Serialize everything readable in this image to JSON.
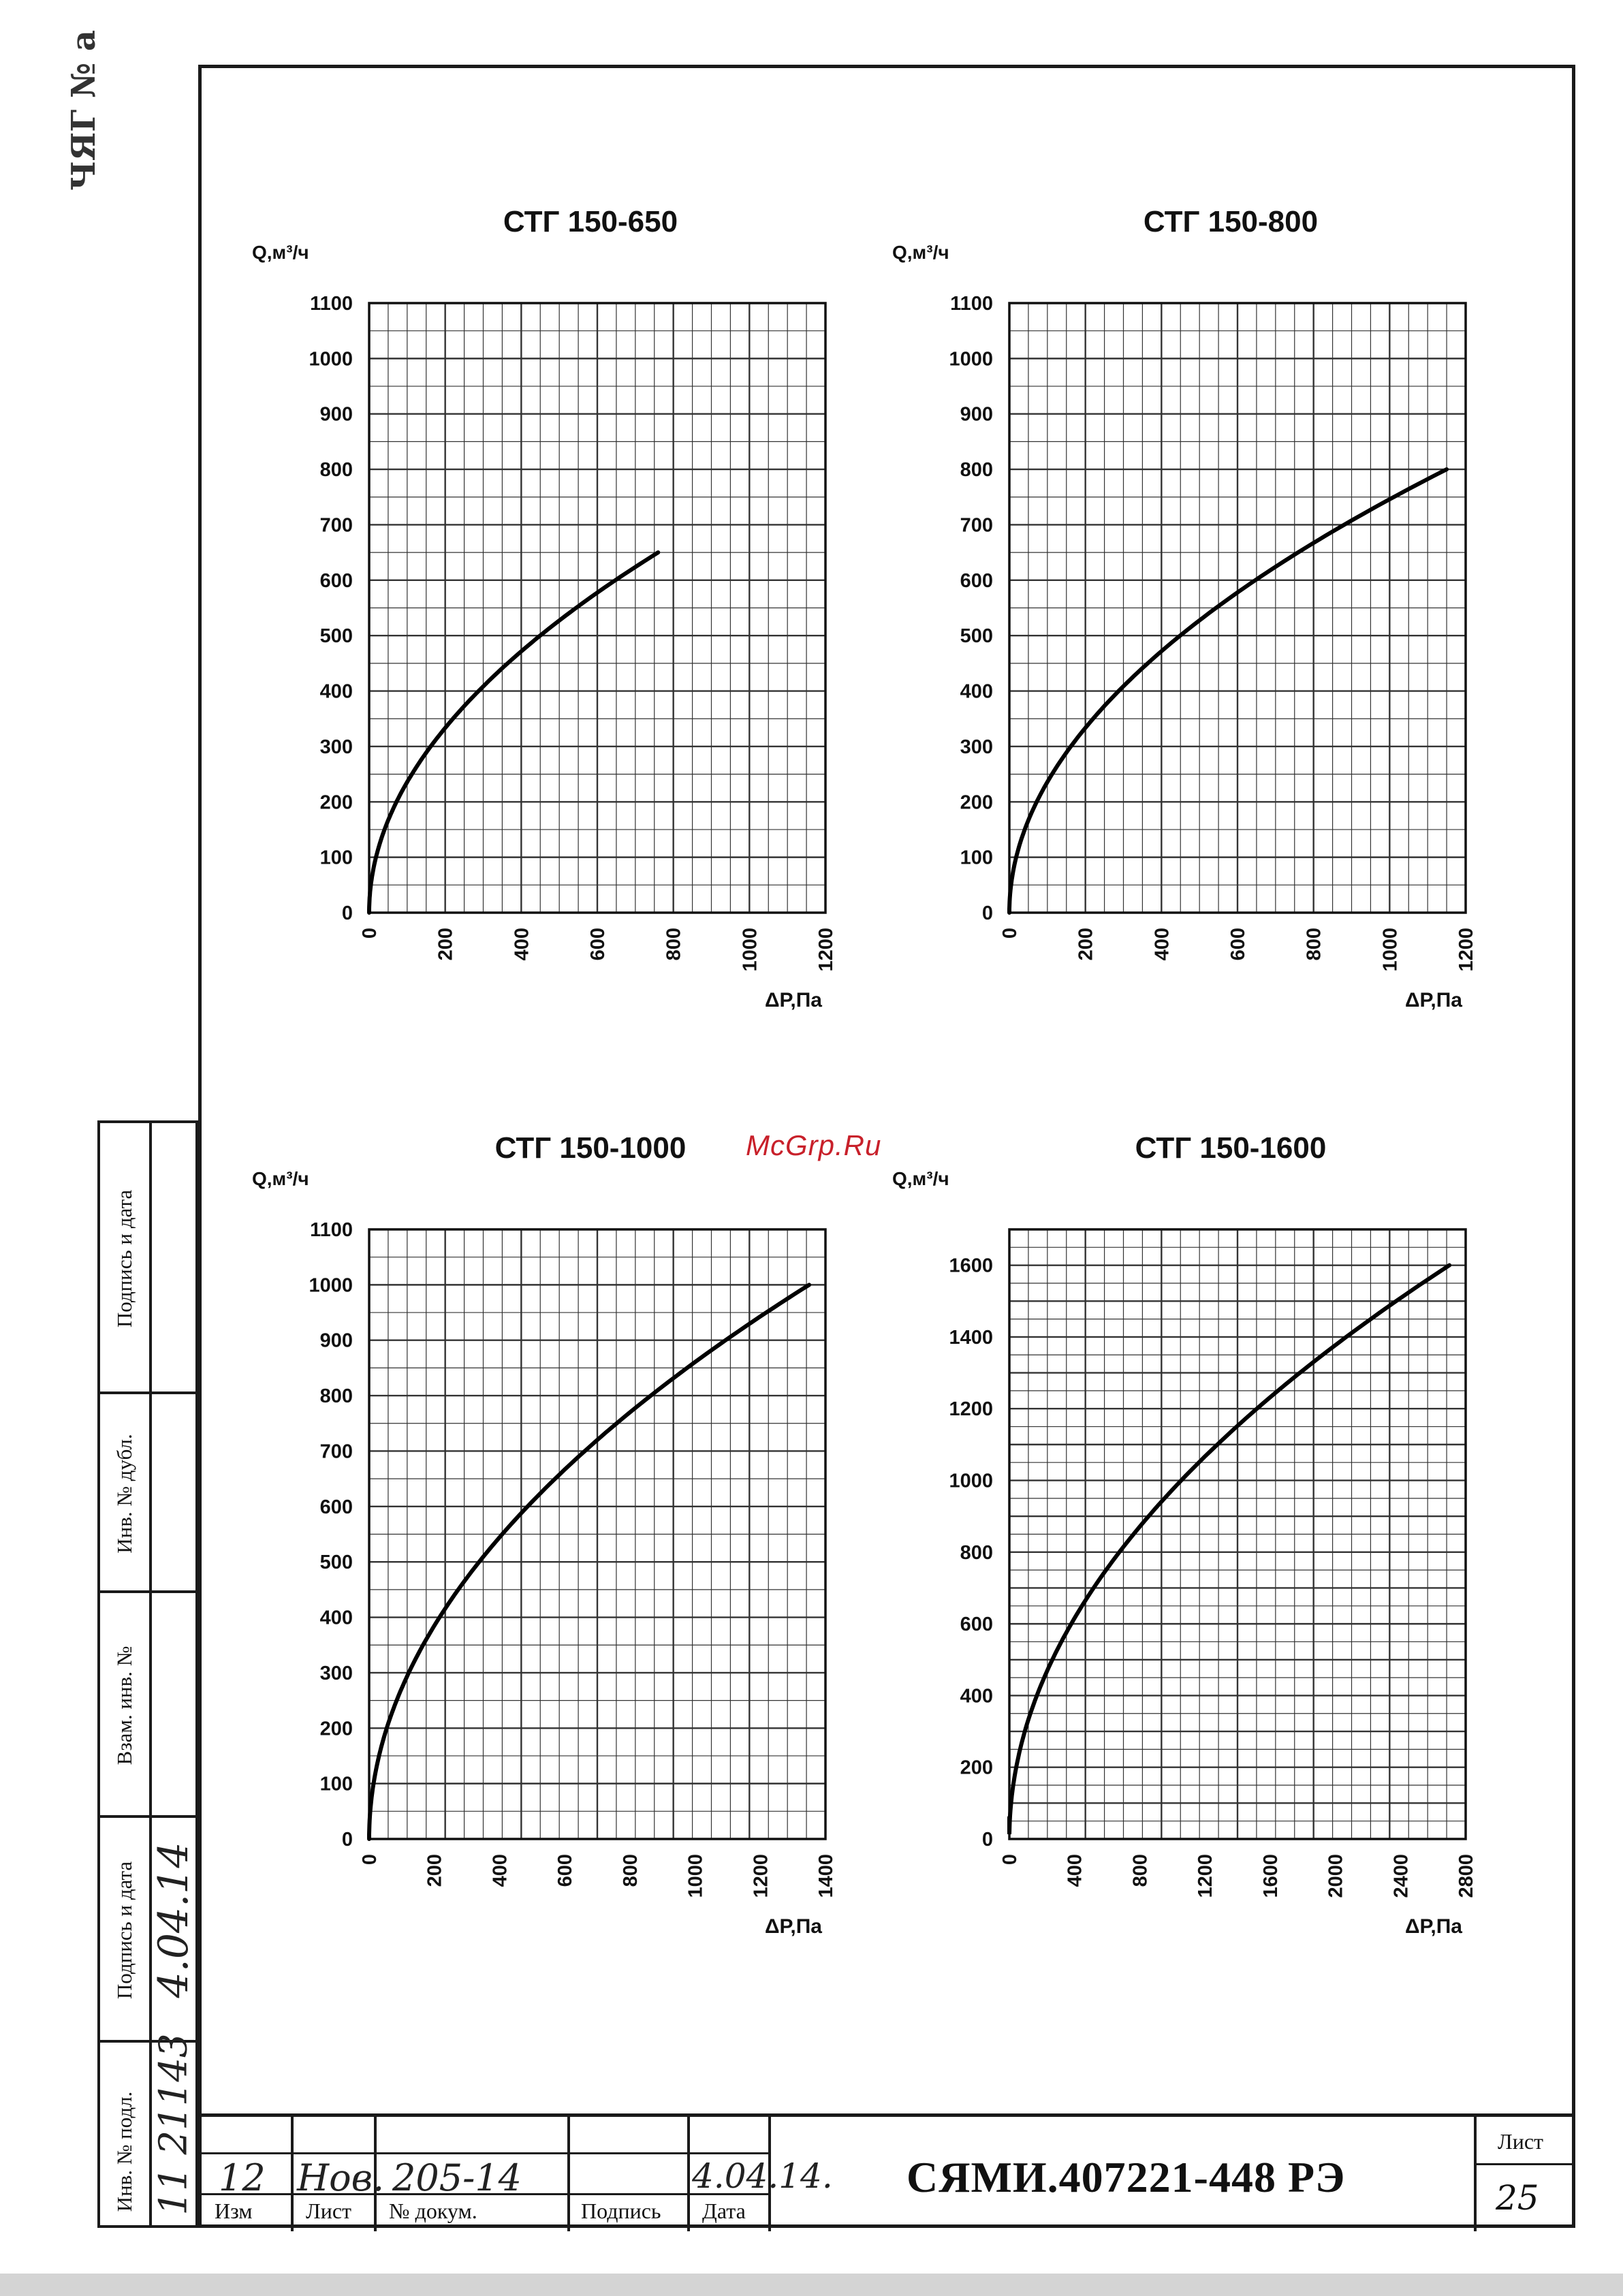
{
  "watermark": "McGrp.Ru",
  "corner_stamp": "ЧЯГ № а",
  "chart_data": [
    {
      "type": "line",
      "title": "СТГ 150-650",
      "ylabel": "Q,м³/ч",
      "xlabel": "ΔР,Па",
      "xlim": [
        0,
        1200
      ],
      "ylim": [
        0,
        1100
      ],
      "xticks": [
        "0",
        "200",
        "400",
        "600",
        "800",
        "1000",
        "1200"
      ],
      "yticks": [
        "0",
        "100",
        "200",
        "300",
        "400",
        "500",
        "600",
        "700",
        "800",
        "900",
        "1000",
        "1100"
      ],
      "grid": true,
      "series": [
        {
          "q_max": 650,
          "dp_max": 760
        }
      ]
    },
    {
      "type": "line",
      "title": "СТГ 150-800",
      "ylabel": "Q,м³/ч",
      "xlabel": "ΔР,Па",
      "xlim": [
        0,
        1200
      ],
      "ylim": [
        0,
        1100
      ],
      "xticks": [
        "0",
        "200",
        "400",
        "600",
        "800",
        "1000",
        "1200"
      ],
      "yticks": [
        "0",
        "100",
        "200",
        "300",
        "400",
        "500",
        "600",
        "700",
        "800",
        "900",
        "1000",
        "1100"
      ],
      "grid": true,
      "series": [
        {
          "q_max": 800,
          "dp_max": 1150
        }
      ]
    },
    {
      "type": "line",
      "title": "СТГ 150-1000",
      "ylabel": "Q,м³/ч",
      "xlabel": "ΔР,Па",
      "xlim": [
        0,
        1400
      ],
      "ylim": [
        0,
        1100
      ],
      "xticks": [
        "0",
        "200",
        "400",
        "600",
        "800",
        "1000",
        "1200",
        "1400"
      ],
      "yticks": [
        "0",
        "100",
        "200",
        "300",
        "400",
        "500",
        "600",
        "700",
        "800",
        "900",
        "1000",
        "1100"
      ],
      "grid": true,
      "series": [
        {
          "q_max": 1000,
          "dp_max": 1350
        }
      ]
    },
    {
      "type": "line",
      "title": "СТГ 150-1600",
      "ylabel": "Q,м³/ч",
      "xlabel": "ΔР,Па",
      "xlim": [
        0,
        2800
      ],
      "ylim": [
        0,
        1700
      ],
      "xticks": [
        "0",
        "400",
        "800",
        "1200",
        "1600",
        "2000",
        "2400",
        "2800"
      ],
      "yticks": [
        "0",
        "200",
        "400",
        "600",
        "800",
        "1000",
        "1200",
        "1400",
        "1600"
      ],
      "grid": true,
      "series": [
        {
          "q_max": 1600,
          "dp_max": 2700
        }
      ]
    }
  ],
  "side_strip": {
    "labels": [
      "Подпись и дата",
      "Инв. № дубл.",
      "Взам. инв. №",
      "Подпись и дата",
      "Инв. № подл."
    ],
    "handwritten_date": "4.04.14",
    "handwritten_inv": "11 21143"
  },
  "title_block": {
    "captions": {
      "izm": "Изм",
      "list": "Лист",
      "doc": "№ докум.",
      "sign": "Подпись",
      "date": "Дата"
    },
    "handwritten": {
      "izm": "12",
      "list": "Нов.",
      "doc": "205-14",
      "date": "4.04.14."
    },
    "code": "СЯМИ.407221-448 РЭ",
    "sheet_caption": "Лист",
    "sheet_number": "25"
  }
}
